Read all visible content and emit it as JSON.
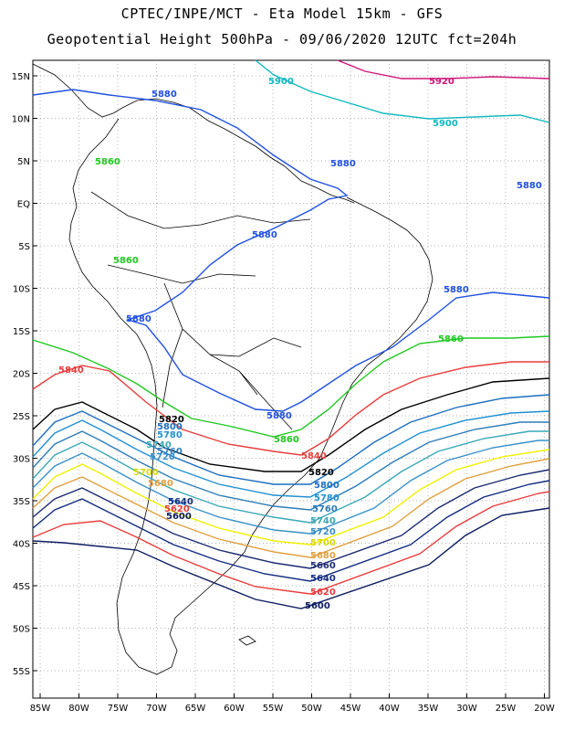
{
  "title": {
    "line1": "CPTEC/INPE/MCT -  Eta Model 15km - GFS",
    "line2": "Geopotential Height 500hPa - 09/06/2020 12UTC fct=204h"
  },
  "lat_ticks": [
    "15N",
    "10N",
    "5N",
    "EQ",
    "5S",
    "10S",
    "15S",
    "20S",
    "25S",
    "30S",
    "35S",
    "40S",
    "45S",
    "50S",
    "55S"
  ],
  "lon_ticks": [
    "85W",
    "80W",
    "75W",
    "70W",
    "65W",
    "60W",
    "55W",
    "50W",
    "45W",
    "40W",
    "35W",
    "30W",
    "25W",
    "20W"
  ],
  "contours": [
    {
      "value": "5920",
      "color": "#d0167a"
    },
    {
      "value": "5900",
      "color": "#10b8c0"
    },
    {
      "value": "5880",
      "color": "#2050e0"
    },
    {
      "value": "5860",
      "color": "#20c820"
    },
    {
      "value": "5840",
      "color": "#e83c3c"
    },
    {
      "value": "5820",
      "color": "#000000"
    },
    {
      "value": "5800",
      "color": "#1c6ec0"
    },
    {
      "value": "5780",
      "color": "#2090d0"
    },
    {
      "value": "5760",
      "color": "#2c7cb8"
    },
    {
      "value": "5740",
      "color": "#3aa8b8"
    },
    {
      "value": "5720",
      "color": "#3890c8"
    },
    {
      "value": "5700",
      "color": "#f0f000"
    },
    {
      "value": "5680",
      "color": "#e0a040"
    },
    {
      "value": "5660",
      "color": "#1a2a70"
    },
    {
      "value": "5640",
      "color": "#102a80"
    },
    {
      "value": "5620",
      "color": "#e83c3c"
    },
    {
      "value": "5600",
      "color": "#0c1c60"
    }
  ],
  "labels": {
    "l5920": "5920",
    "l5900a": "5900",
    "l5900b": "5900",
    "l5880a": "5880",
    "l5880b": "5880",
    "l5880c": "5880",
    "l5880d": "5880",
    "l5880e": "5880",
    "l5880f": "5880",
    "l5880g": "5880",
    "l5860a": "5860",
    "l5860b": "5860",
    "l5860c": "5860",
    "l5860d": "5860",
    "l5840a": "5840",
    "l5840b": "5840",
    "l5820a": "5820",
    "l5820b": "5820",
    "l5800": "5800",
    "l5780": "5780",
    "l5760": "5760",
    "l5740": "5740",
    "l5720": "5720",
    "l5700": "5700",
    "l5680": "5680",
    "l5660": "5660",
    "l5640": "5640",
    "l5620": "5620",
    "l5600": "5600",
    "lw5800": "5800",
    "lw5780": "5780",
    "lw5760": "5760",
    "lw5740": "5740",
    "lw5720": "5720",
    "lw5700": "5700",
    "lw5680": "5680",
    "lw5640": "5640",
    "lw5620": "5620",
    "lw5600": "5600"
  }
}
